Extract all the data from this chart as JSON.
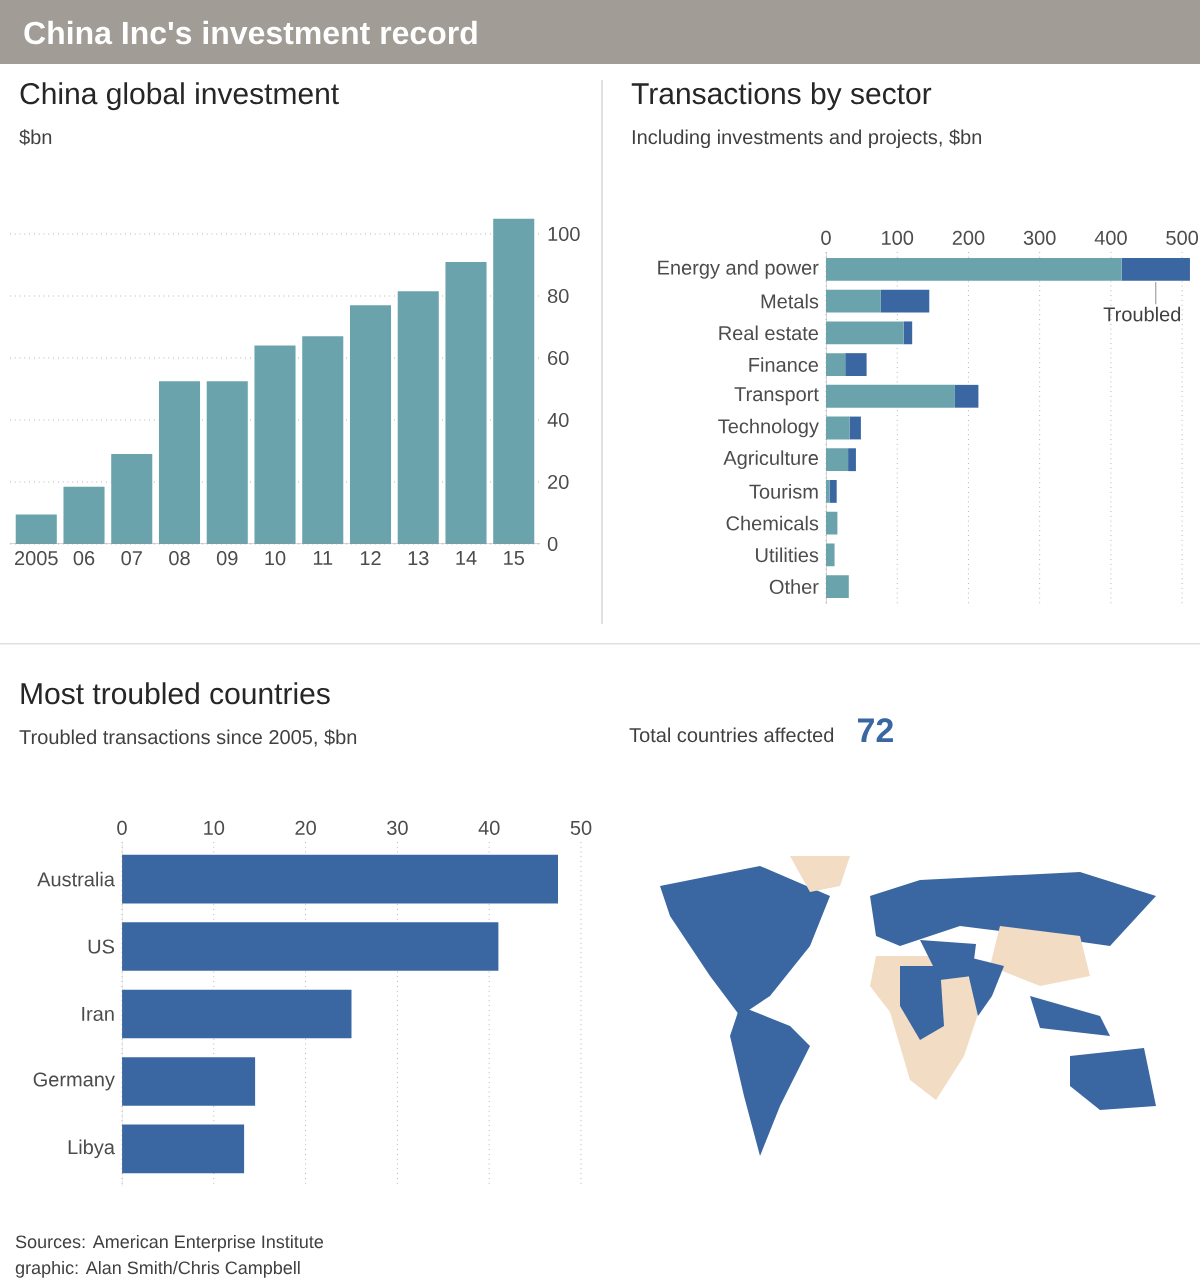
{
  "chart_data": [
    {
      "type": "other",
      "title": "China Inc's investment record",
      "annotations": [
        "Sources: American Enterprise Institute",
        "graphic: Alan Smith/Chris Campbell"
      ]
    },
    {
      "type": "bar",
      "title": "China global investment",
      "subtitle": "$bn",
      "categories": [
        "2005",
        "06",
        "07",
        "08",
        "09",
        "10",
        "11",
        "12",
        "13",
        "14",
        "15"
      ],
      "values": [
        9.5,
        18.5,
        29,
        52.5,
        52.5,
        64,
        67,
        77,
        81.5,
        91,
        105
      ],
      "color": "#6aa3ab",
      "ylim": [
        0,
        105
      ],
      "yticks": [
        0,
        20,
        40,
        60,
        80,
        100
      ],
      "grid": "y"
    },
    {
      "type": "bar",
      "orientation": "horizontal",
      "stacked": true,
      "title": "Transactions by sector",
      "subtitle": "Including investments and projects, $bn",
      "categories": [
        "Energy and power",
        "Metals",
        "Real estate",
        "Finance",
        "Transport",
        "Technology",
        "Agriculture",
        "Tourism",
        "Chemicals",
        "Utilities",
        "Other"
      ],
      "series": [
        {
          "color": "#6aa3ab",
          "values": [
            415,
            77,
            109,
            27,
            181,
            33,
            31,
            5,
            16,
            12,
            32
          ]
        },
        {
          "name": "Troubled",
          "color": "#3a67a2",
          "values": [
            96,
            68,
            12,
            30,
            33,
            16,
            11,
            10,
            null,
            null,
            null
          ]
        }
      ],
      "xlim": [
        0,
        515
      ],
      "xticks": [
        0,
        100,
        200,
        300,
        400,
        500
      ],
      "grid": "x"
    },
    {
      "type": "bar",
      "orientation": "horizontal",
      "title": "Most troubled countries",
      "subtitle": "Troubled transactions since 2005, $bn",
      "categories": [
        "Australia",
        "US",
        "Iran",
        "Germany",
        "Libya"
      ],
      "values": [
        47.5,
        41,
        25,
        14.5,
        13.3
      ],
      "color": "#3a67a2",
      "xlim": [
        0,
        50
      ],
      "xticks": [
        0,
        10,
        20,
        30,
        40,
        50
      ],
      "grid": "x"
    },
    {
      "type": "other",
      "title": "Total countries affected",
      "annotations": [
        "72"
      ]
    }
  ]
}
